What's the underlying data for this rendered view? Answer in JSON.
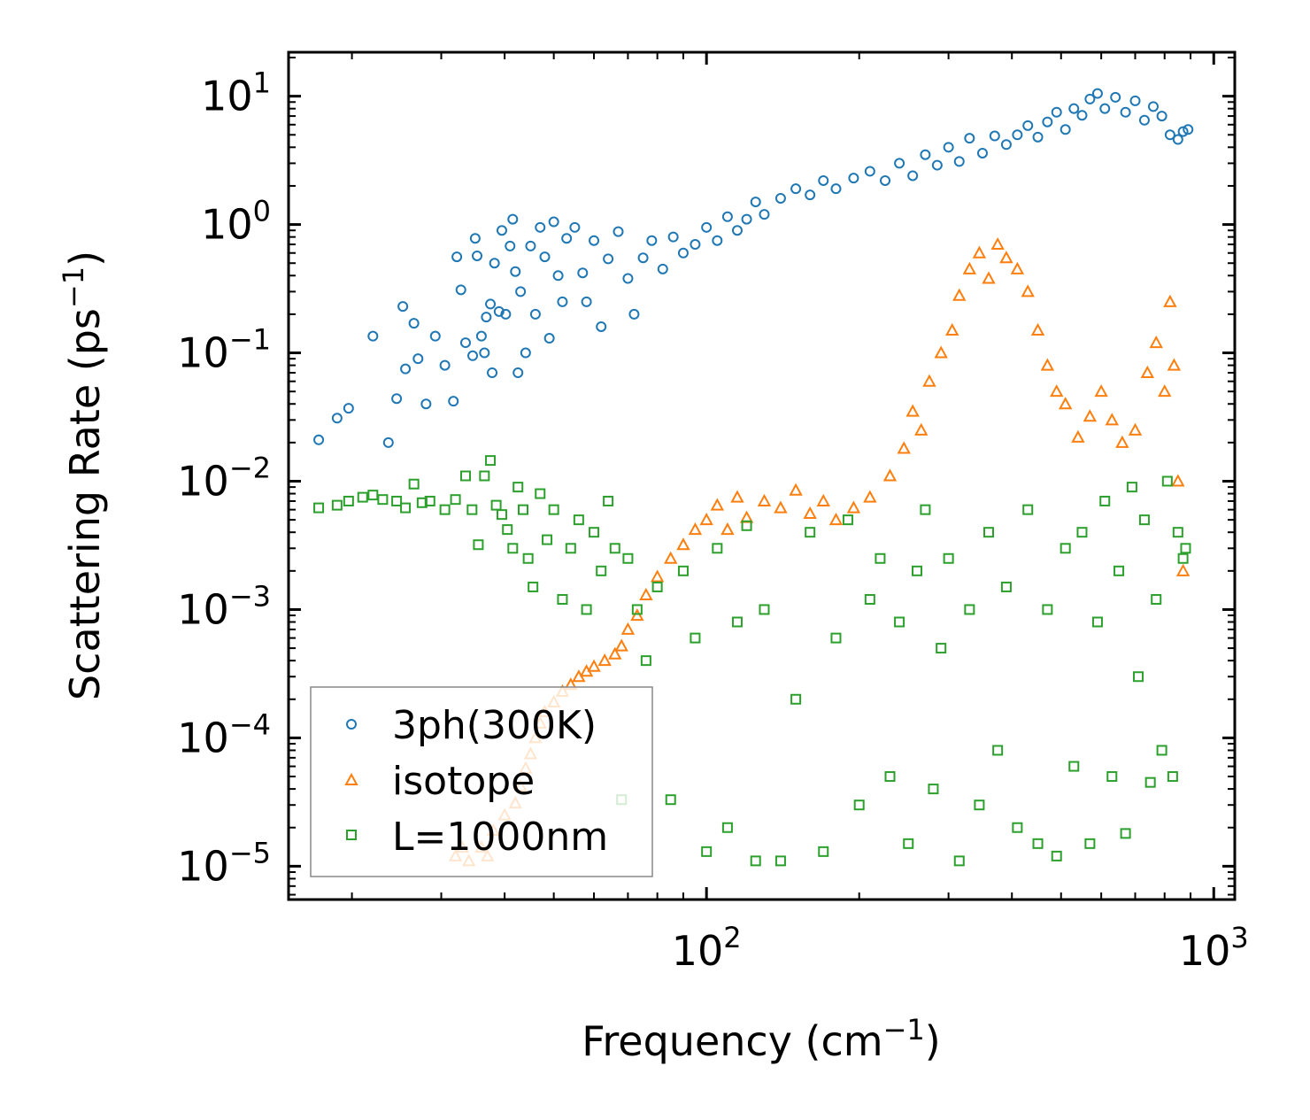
{
  "chart_data": {
    "type": "scatter",
    "xscale": "log",
    "yscale": "log",
    "xlim": [
      15,
      1100
    ],
    "ylim": [
      5.5e-06,
      22
    ],
    "xlabel": {
      "text": "Frequency (cm",
      "sup": "−1",
      "suffix": ")"
    },
    "ylabel": {
      "text": "Scattering Rate (ps",
      "sup": "−1",
      "suffix": ")"
    },
    "x_major_ticks": [
      {
        "value": 100,
        "base": "10",
        "exp": "2"
      },
      {
        "value": 1000,
        "base": "10",
        "exp": "3"
      }
    ],
    "y_major_ticks": [
      {
        "value": 10,
        "base": "10",
        "exp": "1"
      },
      {
        "value": 1,
        "base": "10",
        "exp": "0"
      },
      {
        "value": 0.1,
        "base": "10",
        "exp": "−1"
      },
      {
        "value": 0.01,
        "base": "10",
        "exp": "−2"
      },
      {
        "value": 0.001,
        "base": "10",
        "exp": "−3"
      },
      {
        "value": 0.0001,
        "base": "10",
        "exp": "−4"
      },
      {
        "value": 1e-05,
        "base": "10",
        "exp": "−5"
      }
    ],
    "legend_position": "lower-left",
    "series": [
      {
        "name": "3ph(300K)",
        "marker": "circle",
        "color": "#1f77b4",
        "sample_points": [
          [
            17.2,
            0.021
          ],
          [
            18.7,
            0.031
          ],
          [
            19.7,
            0.037
          ],
          [
            22.0,
            0.135
          ],
          [
            23.6,
            0.02
          ],
          [
            24.5,
            0.044
          ],
          [
            25.2,
            0.23
          ],
          [
            25.5,
            0.075
          ],
          [
            26.5,
            0.17
          ],
          [
            27.0,
            0.09
          ],
          [
            28.0,
            0.04
          ],
          [
            29.2,
            0.135
          ],
          [
            30.5,
            0.08
          ],
          [
            31.7,
            0.042
          ],
          [
            32.2,
            0.56
          ],
          [
            32.8,
            0.31
          ],
          [
            33.5,
            0.12
          ],
          [
            34.6,
            0.095
          ],
          [
            35.0,
            0.78
          ],
          [
            35.3,
            0.57
          ],
          [
            36.0,
            0.135
          ],
          [
            36.5,
            0.1
          ],
          [
            36.8,
            0.19
          ],
          [
            37.5,
            0.24
          ],
          [
            37.8,
            0.07
          ],
          [
            38.2,
            0.5
          ],
          [
            39.0,
            0.21
          ],
          [
            39.5,
            0.9
          ],
          [
            40.2,
            0.2
          ],
          [
            41.0,
            0.68
          ],
          [
            41.5,
            1.1
          ],
          [
            42.0,
            0.43
          ],
          [
            42.5,
            0.07
          ],
          [
            43.0,
            0.3
          ],
          [
            44.0,
            0.1
          ],
          [
            45.0,
            0.68
          ],
          [
            46.0,
            0.2
          ],
          [
            47.0,
            0.95
          ],
          [
            48.0,
            0.56
          ],
          [
            49.0,
            0.13
          ],
          [
            50.0,
            1.05
          ],
          [
            51.0,
            0.4
          ],
          [
            52.0,
            0.25
          ],
          [
            53.0,
            0.78
          ],
          [
            55.0,
            0.95
          ],
          [
            57.0,
            0.42
          ],
          [
            58.0,
            0.25
          ],
          [
            60.0,
            0.75
          ],
          [
            62.0,
            0.16
          ],
          [
            64.0,
            0.54
          ],
          [
            67.0,
            0.88
          ],
          [
            70.0,
            0.38
          ],
          [
            72.0,
            0.2
          ],
          [
            75.0,
            0.55
          ],
          [
            78.0,
            0.75
          ],
          [
            82.0,
            0.45
          ],
          [
            86.0,
            0.8
          ],
          [
            90.0,
            0.6
          ],
          [
            95.0,
            0.7
          ],
          [
            100.0,
            0.95
          ],
          [
            105.0,
            0.75
          ],
          [
            110.0,
            1.15
          ],
          [
            115.0,
            0.9
          ],
          [
            120.0,
            1.1
          ],
          [
            125.0,
            1.5
          ],
          [
            130.0,
            1.2
          ],
          [
            140.0,
            1.6
          ],
          [
            150.0,
            1.9
          ],
          [
            160.0,
            1.7
          ],
          [
            170.0,
            2.2
          ],
          [
            180.0,
            1.9
          ],
          [
            195.0,
            2.3
          ],
          [
            210.0,
            2.6
          ],
          [
            225.0,
            2.2
          ],
          [
            240.0,
            3.0
          ],
          [
            255.0,
            2.4
          ],
          [
            270.0,
            3.5
          ],
          [
            285.0,
            2.9
          ],
          [
            300.0,
            4.0
          ],
          [
            315.0,
            3.1
          ],
          [
            330.0,
            4.7
          ],
          [
            350.0,
            3.6
          ],
          [
            370.0,
            4.9
          ],
          [
            390.0,
            4.2
          ],
          [
            410.0,
            5.0
          ],
          [
            430.0,
            5.9
          ],
          [
            450.0,
            4.8
          ],
          [
            470.0,
            6.3
          ],
          [
            490.0,
            7.5
          ],
          [
            510.0,
            5.5
          ],
          [
            530.0,
            8.0
          ],
          [
            550.0,
            7.1
          ],
          [
            570.0,
            9.5
          ],
          [
            590.0,
            10.5
          ],
          [
            610.0,
            8.0
          ],
          [
            640.0,
            9.8
          ],
          [
            670.0,
            7.5
          ],
          [
            700.0,
            9.2
          ],
          [
            730.0,
            6.5
          ],
          [
            760.0,
            8.3
          ],
          [
            790.0,
            7.0
          ],
          [
            820.0,
            5.0
          ],
          [
            850.0,
            4.6
          ],
          [
            870.0,
            5.3
          ],
          [
            890.0,
            5.5
          ]
        ]
      },
      {
        "name": "isotope",
        "marker": "triangle",
        "color": "#ff7f0e",
        "sample_points": [
          [
            32.0,
            1.2e-05
          ],
          [
            33.0,
            1.4e-05
          ],
          [
            34.0,
            1.1e-05
          ],
          [
            36.0,
            1.4e-05
          ],
          [
            37.0,
            1.2e-05
          ],
          [
            38.0,
            1.9e-05
          ],
          [
            40.0,
            2.5e-05
          ],
          [
            42.0,
            3.1e-05
          ],
          [
            43.0,
            4.2e-05
          ],
          [
            44.0,
            5.8e-05
          ],
          [
            45.0,
            7.5e-05
          ],
          [
            46.0,
            0.0001
          ],
          [
            47.0,
            0.00013
          ],
          [
            48.0,
            0.00016
          ],
          [
            50.0,
            0.00019
          ],
          [
            52.0,
            0.00023
          ],
          [
            54.0,
            0.00026
          ],
          [
            56.0,
            0.0003
          ],
          [
            58.0,
            0.00033
          ],
          [
            60.0,
            0.00036
          ],
          [
            63.0,
            0.0004
          ],
          [
            66.0,
            0.00045
          ],
          [
            68.0,
            0.00052
          ],
          [
            70.0,
            0.0007
          ],
          [
            73.0,
            0.0009
          ],
          [
            76.0,
            0.0013
          ],
          [
            80.0,
            0.0018
          ],
          [
            85.0,
            0.0025
          ],
          [
            90.0,
            0.0032
          ],
          [
            95.0,
            0.0042
          ],
          [
            100.0,
            0.005
          ],
          [
            105.0,
            0.0065
          ],
          [
            110.0,
            0.0042
          ],
          [
            115.0,
            0.0075
          ],
          [
            120.0,
            0.0052
          ],
          [
            130.0,
            0.007
          ],
          [
            140.0,
            0.0062
          ],
          [
            150.0,
            0.0085
          ],
          [
            160.0,
            0.0056
          ],
          [
            170.0,
            0.007
          ],
          [
            180.0,
            0.005
          ],
          [
            195.0,
            0.0062
          ],
          [
            210.0,
            0.0075
          ],
          [
            230.0,
            0.011
          ],
          [
            245.0,
            0.018
          ],
          [
            255.0,
            0.035
          ],
          [
            265.0,
            0.025
          ],
          [
            275.0,
            0.06
          ],
          [
            290.0,
            0.1
          ],
          [
            305.0,
            0.15
          ],
          [
            315.0,
            0.28
          ],
          [
            330.0,
            0.45
          ],
          [
            345.0,
            0.6
          ],
          [
            360.0,
            0.38
          ],
          [
            375.0,
            0.7
          ],
          [
            390.0,
            0.55
          ],
          [
            410.0,
            0.45
          ],
          [
            430.0,
            0.3
          ],
          [
            450.0,
            0.15
          ],
          [
            470.0,
            0.08
          ],
          [
            490.0,
            0.05
          ],
          [
            510.0,
            0.04
          ],
          [
            540.0,
            0.022
          ],
          [
            570.0,
            0.032
          ],
          [
            600.0,
            0.05
          ],
          [
            630.0,
            0.03
          ],
          [
            660.0,
            0.02
          ],
          [
            700.0,
            0.025
          ],
          [
            740.0,
            0.07
          ],
          [
            770.0,
            0.12
          ],
          [
            800.0,
            0.05
          ],
          [
            820.0,
            0.25
          ],
          [
            835.0,
            0.08
          ],
          [
            850.0,
            0.01
          ],
          [
            870.0,
            0.002
          ]
        ]
      },
      {
        "name": "L=1000nm",
        "marker": "square",
        "color": "#2ca02c",
        "sample_points": [
          [
            17.2,
            0.0062
          ],
          [
            18.7,
            0.0065
          ],
          [
            19.7,
            0.007
          ],
          [
            21.0,
            0.0075
          ],
          [
            22.0,
            0.0078
          ],
          [
            23.0,
            0.0072
          ],
          [
            24.5,
            0.007
          ],
          [
            25.5,
            0.0062
          ],
          [
            26.5,
            0.0095
          ],
          [
            27.5,
            0.0068
          ],
          [
            28.5,
            0.007
          ],
          [
            30.5,
            0.006
          ],
          [
            32.0,
            0.0072
          ],
          [
            33.5,
            0.011
          ],
          [
            34.5,
            0.006
          ],
          [
            35.5,
            0.0032
          ],
          [
            36.5,
            0.011
          ],
          [
            37.5,
            0.0145
          ],
          [
            38.5,
            0.0065
          ],
          [
            39.5,
            0.0055
          ],
          [
            40.5,
            0.0042
          ],
          [
            41.5,
            0.003
          ],
          [
            42.5,
            0.009
          ],
          [
            43.5,
            0.006
          ],
          [
            44.5,
            0.0025
          ],
          [
            45.5,
            0.0015
          ],
          [
            47.0,
            0.008
          ],
          [
            48.5,
            0.0035
          ],
          [
            50.0,
            0.006
          ],
          [
            52.0,
            0.0012
          ],
          [
            54.0,
            0.003
          ],
          [
            56.0,
            0.005
          ],
          [
            58.0,
            0.001
          ],
          [
            60.0,
            0.004
          ],
          [
            62.0,
            0.002
          ],
          [
            64.0,
            0.007
          ],
          [
            66.0,
            0.003
          ],
          [
            68.0,
            3.3e-05
          ],
          [
            70.0,
            0.0025
          ],
          [
            73.0,
            0.001
          ],
          [
            76.0,
            0.0004
          ],
          [
            80.0,
            0.0015
          ],
          [
            85.0,
            3.3e-05
          ],
          [
            90.0,
            0.002
          ],
          [
            95.0,
            0.0006
          ],
          [
            100.0,
            1.3e-05
          ],
          [
            105.0,
            0.003
          ],
          [
            110.0,
            2e-05
          ],
          [
            115.0,
            0.0008
          ],
          [
            120.0,
            0.0045
          ],
          [
            125.0,
            1.1e-05
          ],
          [
            130.0,
            0.001
          ],
          [
            140.0,
            1.1e-05
          ],
          [
            150.0,
            0.0002
          ],
          [
            160.0,
            0.004
          ],
          [
            170.0,
            1.3e-05
          ],
          [
            180.0,
            0.0006
          ],
          [
            190.0,
            0.005
          ],
          [
            200.0,
            3e-05
          ],
          [
            210.0,
            0.0012
          ],
          [
            220.0,
            0.0025
          ],
          [
            230.0,
            5e-05
          ],
          [
            240.0,
            0.0008
          ],
          [
            250.0,
            1.5e-05
          ],
          [
            260.0,
            0.002
          ],
          [
            270.0,
            0.006
          ],
          [
            280.0,
            4e-05
          ],
          [
            290.0,
            0.0005
          ],
          [
            300.0,
            0.0025
          ],
          [
            315.0,
            1.1e-05
          ],
          [
            330.0,
            0.001
          ],
          [
            345.0,
            3e-05
          ],
          [
            360.0,
            0.004
          ],
          [
            375.0,
            8e-05
          ],
          [
            390.0,
            0.0015
          ],
          [
            410.0,
            2e-05
          ],
          [
            430.0,
            0.006
          ],
          [
            450.0,
            1.5e-05
          ],
          [
            470.0,
            0.001
          ],
          [
            490.0,
            1.2e-05
          ],
          [
            510.0,
            0.003
          ],
          [
            530.0,
            6e-05
          ],
          [
            550.0,
            0.004
          ],
          [
            570.0,
            1.5e-05
          ],
          [
            590.0,
            0.0008
          ],
          [
            610.0,
            0.007
          ],
          [
            630.0,
            5e-05
          ],
          [
            650.0,
            0.002
          ],
          [
            670.0,
            1.8e-05
          ],
          [
            690.0,
            0.009
          ],
          [
            710.0,
            0.0003
          ],
          [
            730.0,
            0.005
          ],
          [
            750.0,
            4.5e-05
          ],
          [
            770.0,
            0.0012
          ],
          [
            790.0,
            8e-05
          ],
          [
            810.0,
            0.01
          ],
          [
            830.0,
            5e-05
          ],
          [
            850.0,
            0.004
          ],
          [
            870.0,
            0.0025
          ],
          [
            880.0,
            0.003
          ]
        ]
      }
    ]
  }
}
